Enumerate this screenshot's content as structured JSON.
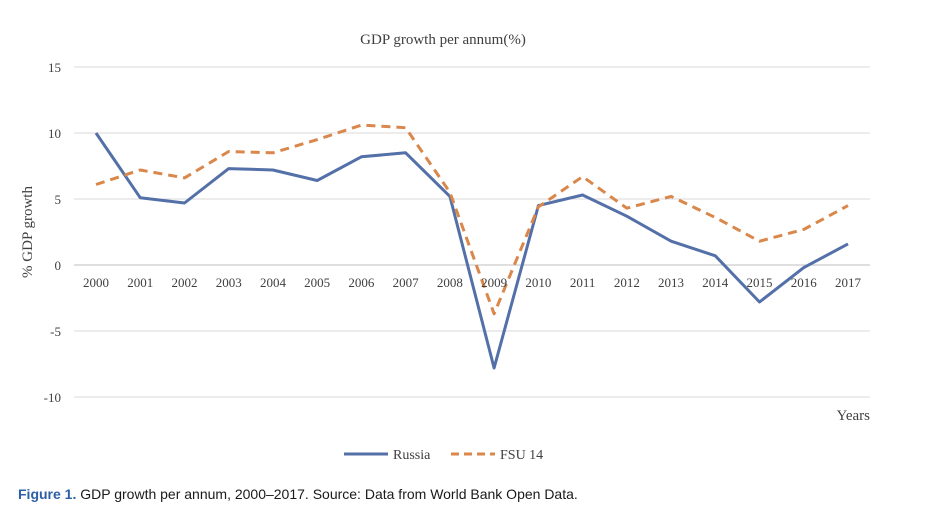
{
  "chart_data": {
    "type": "line",
    "title": "GDP growth per annum(%)",
    "xlabel": "Years",
    "ylabel": "% GDP growth",
    "ylim": [
      -10,
      15
    ],
    "yticks": [
      "15",
      "10",
      "5",
      "0",
      "-5",
      "-10"
    ],
    "categories": [
      "2000",
      "2001",
      "2002",
      "2003",
      "2004",
      "2005",
      "2006",
      "2007",
      "2008",
      "2009",
      "2010",
      "2011",
      "2012",
      "2013",
      "2014",
      "2015",
      "2016",
      "2017"
    ],
    "grid": true,
    "legend_position": "bottom",
    "series": [
      {
        "name": "Russia",
        "color": "#5470a8",
        "dash": "solid",
        "values": [
          10.0,
          5.1,
          4.7,
          7.3,
          7.2,
          6.4,
          8.2,
          8.5,
          5.2,
          -7.8,
          4.5,
          5.3,
          3.7,
          1.8,
          0.7,
          -2.8,
          -0.2,
          1.6
        ]
      },
      {
        "name": "FSU 14",
        "color": "#d9874a",
        "dash": "dashed",
        "values": [
          6.1,
          7.2,
          6.6,
          8.6,
          8.5,
          9.5,
          10.6,
          10.4,
          5.5,
          -3.7,
          4.4,
          6.7,
          4.3,
          5.2,
          3.6,
          1.8,
          2.7,
          4.5
        ]
      }
    ]
  },
  "caption": {
    "label": "Figure 1.",
    "text": " GDP growth per annum, 2000–2017. Source: Data from World Bank Open Data."
  }
}
